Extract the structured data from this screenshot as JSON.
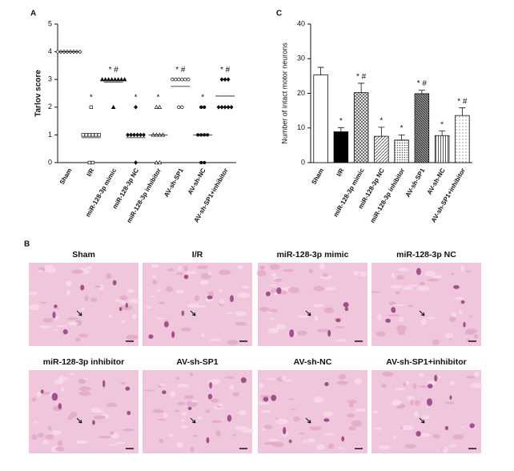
{
  "chart_data": [
    {
      "type": "dotplot",
      "panel": "A",
      "ylabel": "Tarlov score",
      "categories": [
        "Sham",
        "I/R",
        "miR-128-3p mimic",
        "miR-128-3p NC",
        "miR-128-3p inhibitor",
        "AV-sh-SP1",
        "AV-sh-NC",
        "AV-sh-SP1+inhibitor"
      ],
      "points": [
        [
          4,
          4,
          4,
          4,
          4,
          4,
          4,
          4
        ],
        [
          2,
          1,
          1,
          1,
          1,
          1,
          1,
          0,
          0
        ],
        [
          3,
          3,
          3,
          3,
          3,
          3,
          3,
          3,
          2
        ],
        [
          2,
          1,
          1,
          1,
          1,
          1,
          1,
          0
        ],
        [
          2,
          2,
          1,
          1,
          1,
          1,
          0,
          0
        ],
        [
          3,
          3,
          3,
          3,
          3,
          3,
          2,
          2
        ],
        [
          2,
          2,
          1,
          1,
          1,
          1,
          0,
          0
        ],
        [
          3,
          3,
          3,
          2,
          2,
          2,
          2,
          2
        ]
      ],
      "means": [
        4,
        0.9,
        2.9,
        0.9,
        1,
        2.75,
        1,
        2.4
      ],
      "markers": [
        "diamond-open",
        "square-open",
        "triangle",
        "diamond",
        "triangle-open",
        "circle-open",
        "circle",
        "diamond"
      ],
      "annotations": [
        null,
        "*",
        "* #",
        "*",
        "*",
        "* #",
        "*",
        "* #"
      ],
      "ylim": [
        0,
        5
      ],
      "yticks": [
        0,
        1,
        2,
        3,
        4,
        5
      ],
      "color": "#111111"
    },
    {
      "type": "bar",
      "panel": "C",
      "ylabel": "Number of intact motor neurons",
      "categories": [
        "Sham",
        "I/R",
        "miR-128-3p mimic",
        "miR-128-3p NC",
        "miR-128-3p inhibitor",
        "AV-sh-SP1",
        "AV-sh-NC",
        "AV-sh-SP1+inhibitor"
      ],
      "values": [
        25.3,
        8.9,
        20.2,
        7.6,
        6.5,
        19.9,
        7.8,
        13.6
      ],
      "errors": [
        2.2,
        1.2,
        2.7,
        2.6,
        1.5,
        1.0,
        1.3,
        2.2
      ],
      "fills": [
        "white",
        "black",
        "crosshatch",
        "hatch",
        "dense-dots",
        "diagonal",
        "vertical",
        "dots"
      ],
      "annotations": [
        null,
        "*",
        "* #",
        "*",
        "*",
        "* #",
        "*",
        "* #"
      ],
      "ylim": [
        0,
        40
      ],
      "yticks": [
        0,
        10,
        20,
        30,
        40
      ],
      "color": "#111111"
    }
  ],
  "image_panel": {
    "label": "B",
    "titles": [
      "Sham",
      "I/R",
      "miR-128-3p mimic",
      "miR-128-3p NC",
      "miR-128-3p inhibitor",
      "AV-sh-SP1",
      "AV-sh-NC",
      "AV-sh-SP1+inhibitor"
    ]
  }
}
